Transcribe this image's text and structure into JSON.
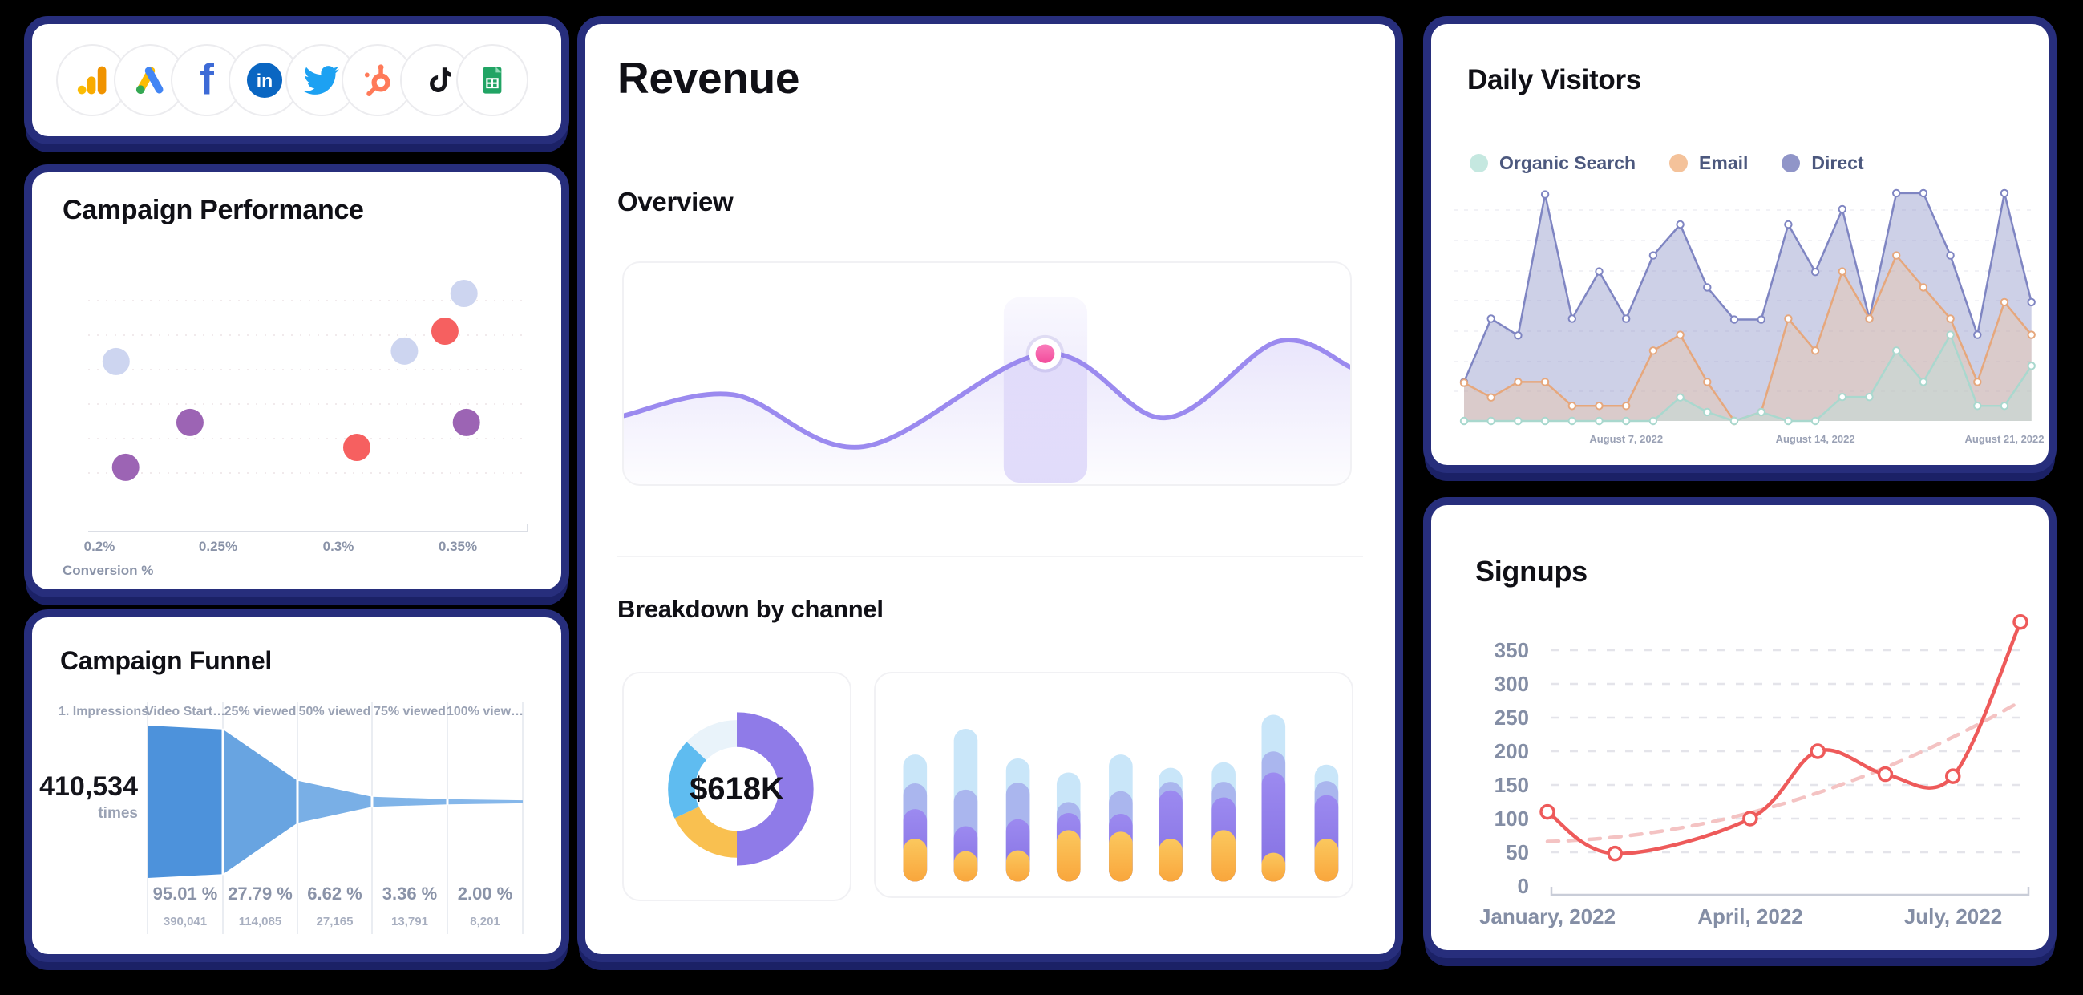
{
  "theme": {
    "background": "#000000",
    "card_border": "#272E7C",
    "card_shadow": "#1B2166",
    "card_bg": "#FFFFFF",
    "heading_color": "#101016",
    "muted_color": "#8A93A8"
  },
  "integrations": {
    "items": [
      {
        "name": "google-analytics"
      },
      {
        "name": "google-ads"
      },
      {
        "name": "facebook"
      },
      {
        "name": "linkedin"
      },
      {
        "name": "twitter"
      },
      {
        "name": "hubspot"
      },
      {
        "name": "tiktok"
      },
      {
        "name": "google-sheets"
      }
    ]
  },
  "campaign_performance": {
    "title": "Campaign Performance",
    "x_axis_label": "Conversion %",
    "x_ticks": [
      "0.2%",
      "0.25%",
      "0.3%",
      "0.35%"
    ],
    "dot_colors": {
      "periwinkle": "#CDD5F0",
      "red": "#F66060",
      "purple": "#9C64B4"
    },
    "points": [
      {
        "conversion": 0.207,
        "height": 0.667,
        "color": "periwinkle"
      },
      {
        "conversion": 0.328,
        "height": 0.708,
        "color": "periwinkle"
      },
      {
        "conversion": 0.353,
        "height": 0.934,
        "color": "periwinkle"
      },
      {
        "conversion": 0.345,
        "height": 0.786,
        "color": "red"
      },
      {
        "conversion": 0.308,
        "height": 0.33,
        "color": "red"
      },
      {
        "conversion": 0.238,
        "height": 0.428,
        "color": "purple"
      },
      {
        "conversion": 0.211,
        "height": 0.252,
        "color": "purple"
      },
      {
        "conversion": 0.354,
        "height": 0.428,
        "color": "purple"
      }
    ]
  },
  "campaign_funnel": {
    "title": "Campaign Funnel",
    "first_column_header": "1. Impressions",
    "start_value": "410,534",
    "start_unit": "times",
    "segment_colors": [
      "#4D92DB",
      "#68A4E1",
      "#79AFE6",
      "#80B4E8",
      "#85B7EA"
    ],
    "steps": [
      {
        "header": "Video Start…",
        "pct": "95.01 %",
        "count": "390,041",
        "ratio": 0.9501
      },
      {
        "header": "25% viewed",
        "pct": "27.79 %",
        "count": "114,085",
        "ratio": 0.2779
      },
      {
        "header": "50% viewed",
        "pct": "6.62 %",
        "count": "27,165",
        "ratio": 0.0662
      },
      {
        "header": "75% viewed",
        "pct": "3.36 %",
        "count": "13,791",
        "ratio": 0.0336
      },
      {
        "header": "100% view…",
        "pct": "2.00 %",
        "count": "8,201",
        "ratio": 0.02
      }
    ]
  },
  "revenue": {
    "title": "Revenue",
    "overview_label": "Overview",
    "breakdown_label": "Breakdown by channel",
    "overview": {
      "line_color": "#9B8AEF",
      "waypoints": [
        [
          0,
          0.69
        ],
        [
          0.15,
          0.595
        ],
        [
          0.33,
          0.83
        ],
        [
          0.58,
          0.41
        ],
        [
          0.745,
          0.7
        ],
        [
          0.9,
          0.355
        ],
        [
          1,
          0.47
        ]
      ],
      "highlight_index": 3,
      "band": [
        0.523,
        0.638
      ],
      "dot_color": "#F2509D"
    },
    "donut": {
      "center": "$618K",
      "segments": [
        {
          "pct": 50,
          "color": "#8F7BE8",
          "emphasis": true
        },
        {
          "pct": 18,
          "color": "#F9C050",
          "emphasis": false
        },
        {
          "pct": 19,
          "color": "#5FBCF0",
          "emphasis": false
        },
        {
          "pct": 13,
          "color": "#E9F3FA",
          "emphasis": false
        }
      ]
    },
    "bars": {
      "segment_order": [
        "yellow",
        "purple",
        "light",
        "blue"
      ],
      "segment_colors": {
        "yellow_top": "#FBC85E",
        "yellow_bottom": "#F9A63C",
        "purple": "#8F7CE8",
        "light": "#AAB6EE",
        "blue": "#C9E6F9"
      },
      "stacks": [
        [
          55,
          38,
          33,
          37
        ],
        [
          39,
          32,
          47,
          78
        ],
        [
          40,
          40,
          47,
          31
        ],
        [
          66,
          22,
          14,
          38
        ],
        [
          64,
          23,
          29,
          47
        ],
        [
          55,
          62,
          11,
          18
        ],
        [
          66,
          42,
          20,
          25
        ],
        [
          37,
          103,
          27,
          47
        ],
        [
          55,
          56,
          18,
          21
        ]
      ]
    }
  },
  "daily_visitors": {
    "title": "Daily Visitors",
    "legend": [
      {
        "label": "Organic Search",
        "color": "#C5E8E0"
      },
      {
        "label": "Email",
        "color": "#F4C29A"
      },
      {
        "label": "Direct",
        "color": "#9095C8"
      }
    ],
    "x_labels": [
      "August 7, 2022",
      "August 14, 2022",
      "August 21, 2022"
    ],
    "x_label_indices": [
      6,
      13,
      20
    ],
    "series": [
      {
        "name": "Direct",
        "line": "#7F85C2",
        "fill": "rgba(144,150,201,0.45)",
        "values": [
          18.4,
          48.3,
          40.4,
          107,
          48.3,
          70.6,
          48.3,
          78.2,
          92.8,
          63.1,
          47.9,
          47.9,
          92.8,
          70.4,
          100,
          48.3,
          107.6,
          107.6,
          78.2,
          40.7,
          107.6,
          56.1
        ]
      },
      {
        "name": "Email",
        "line": "#E6A77C",
        "fill": "rgba(244,194,150,0.34)",
        "values": [
          18,
          11.1,
          18.4,
          18.4,
          7.1,
          7.1,
          7.1,
          33.2,
          40.7,
          18.4,
          0,
          4.2,
          48.3,
          33.2,
          70.6,
          48.3,
          78.2,
          63.1,
          48.3,
          18.4,
          56.1,
          40.7
        ]
      },
      {
        "name": "Organic Search",
        "line": "#A9D8CE",
        "fill": "rgba(186,226,218,0.38)",
        "values": [
          0,
          0,
          0,
          0,
          0,
          0,
          0,
          0,
          11.1,
          4.2,
          0,
          4.2,
          0,
          0,
          11.3,
          11.3,
          33.2,
          18.4,
          40.7,
          7.1,
          7.1,
          26
        ]
      }
    ]
  },
  "signups": {
    "title": "Signups",
    "y_ticks": [
      0,
      50,
      100,
      150,
      200,
      250,
      300,
      350
    ],
    "x_labels": [
      "January, 2022",
      "April, 2022",
      "July, 2022"
    ],
    "line_color": "#EE5A5A",
    "trend_color": "#F4C3C3",
    "month_offsets": [
      0,
      1,
      3,
      4,
      5,
      6,
      7
    ],
    "values": [
      110,
      48,
      100,
      200,
      166,
      163,
      392
    ],
    "trend": {
      "start": 66,
      "end": 274
    }
  }
}
